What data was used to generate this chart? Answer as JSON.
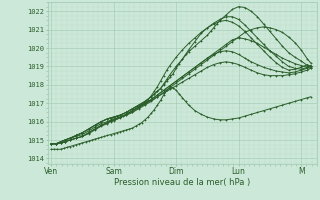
{
  "bg_color": "#cce8d8",
  "grid_major_color": "#a0c8b0",
  "grid_minor_color": "#b8d8c4",
  "line_color": "#2a5e2a",
  "ylabel_values": [
    1014,
    1015,
    1016,
    1017,
    1018,
    1019,
    1020,
    1021,
    1022
  ],
  "ylim": [
    1013.7,
    1022.5
  ],
  "xlim": [
    -0.05,
    4.25
  ],
  "xtick_labels": [
    "Ven",
    "Sam",
    "Dim",
    "Lun",
    "M"
  ],
  "xtick_positions": [
    0,
    1,
    2,
    3,
    4
  ],
  "xlabel": "Pression niveau de la mer( hPa )",
  "lines": [
    {
      "x": [
        0.0,
        0.08,
        0.15,
        0.22,
        0.3,
        0.4,
        0.5,
        0.6,
        0.7,
        0.8,
        0.9,
        0.95,
        1.0,
        1.05,
        1.1,
        1.15,
        1.2,
        1.3,
        1.4,
        1.5,
        1.6,
        1.7,
        1.8,
        1.9,
        2.0,
        2.1,
        2.2,
        2.3,
        2.4,
        2.5,
        2.6,
        2.7,
        2.8,
        2.9,
        3.0,
        3.1,
        3.2,
        3.3,
        3.4,
        3.5,
        3.6,
        3.7,
        3.8,
        3.9,
        4.0,
        4.1,
        4.15
      ],
      "y": [
        1014.8,
        1014.8,
        1014.9,
        1015.0,
        1015.1,
        1015.2,
        1015.3,
        1015.5,
        1015.7,
        1015.9,
        1016.0,
        1016.1,
        1016.15,
        1016.2,
        1016.25,
        1016.3,
        1016.35,
        1016.5,
        1016.7,
        1016.9,
        1017.1,
        1017.35,
        1017.6,
        1017.85,
        1018.1,
        1018.35,
        1018.6,
        1018.85,
        1019.1,
        1019.35,
        1019.6,
        1019.85,
        1020.1,
        1020.35,
        1020.6,
        1020.85,
        1021.0,
        1021.1,
        1021.15,
        1021.1,
        1021.0,
        1020.85,
        1020.6,
        1020.3,
        1019.9,
        1019.4,
        1019.2
      ]
    },
    {
      "x": [
        0.0,
        0.08,
        0.15,
        0.22,
        0.3,
        0.4,
        0.5,
        0.6,
        0.7,
        0.8,
        0.9,
        0.95,
        1.0,
        1.05,
        1.1,
        1.2,
        1.3,
        1.4,
        1.5,
        1.6,
        1.65,
        1.7,
        1.75,
        1.8,
        1.85,
        1.9,
        1.95,
        2.0,
        2.05,
        2.1,
        2.15,
        2.2,
        2.3,
        2.4,
        2.5,
        2.6,
        2.7,
        2.8,
        2.9,
        3.0,
        3.1,
        3.2,
        3.3,
        3.4,
        3.5,
        3.6,
        3.7,
        3.8,
        3.9,
        4.0,
        4.1,
        4.15
      ],
      "y": [
        1014.8,
        1014.8,
        1014.9,
        1015.0,
        1015.1,
        1015.25,
        1015.4,
        1015.6,
        1015.8,
        1016.0,
        1016.15,
        1016.2,
        1016.25,
        1016.3,
        1016.35,
        1016.5,
        1016.7,
        1016.9,
        1017.1,
        1017.35,
        1017.5,
        1017.65,
        1017.8,
        1018.0,
        1018.2,
        1018.4,
        1018.6,
        1018.9,
        1019.15,
        1019.4,
        1019.65,
        1019.9,
        1020.35,
        1020.8,
        1021.1,
        1021.3,
        1021.45,
        1021.5,
        1021.4,
        1021.2,
        1020.9,
        1020.55,
        1020.2,
        1019.85,
        1019.5,
        1019.2,
        1018.95,
        1018.8,
        1018.85,
        1018.95,
        1019.1,
        1019.0
      ]
    },
    {
      "x": [
        0.0,
        0.08,
        0.15,
        0.22,
        0.3,
        0.4,
        0.5,
        0.6,
        0.7,
        0.8,
        0.9,
        0.95,
        1.0,
        1.05,
        1.1,
        1.2,
        1.3,
        1.4,
        1.5,
        1.6,
        1.65,
        1.7,
        1.75,
        1.8,
        1.85,
        1.9,
        2.0,
        2.1,
        2.2,
        2.3,
        2.4,
        2.5,
        2.55,
        2.6,
        2.65,
        2.7,
        2.8,
        2.9,
        3.0,
        3.1,
        3.2,
        3.3,
        3.4,
        3.5,
        3.6,
        3.7,
        3.8,
        3.9,
        4.0,
        4.1,
        4.15
      ],
      "y": [
        1014.8,
        1014.8,
        1014.9,
        1015.0,
        1015.1,
        1015.25,
        1015.4,
        1015.6,
        1015.8,
        1016.0,
        1016.15,
        1016.2,
        1016.25,
        1016.3,
        1016.35,
        1016.5,
        1016.7,
        1016.9,
        1017.1,
        1017.35,
        1017.5,
        1017.65,
        1017.8,
        1018.05,
        1018.3,
        1018.55,
        1019.0,
        1019.4,
        1019.8,
        1020.1,
        1020.4,
        1020.7,
        1020.9,
        1021.1,
        1021.3,
        1021.5,
        1021.8,
        1022.1,
        1022.25,
        1022.2,
        1022.0,
        1021.7,
        1021.3,
        1020.9,
        1020.5,
        1020.1,
        1019.75,
        1019.5,
        1019.3,
        1019.05,
        1018.95
      ]
    },
    {
      "x": [
        0.0,
        0.08,
        0.15,
        0.22,
        0.3,
        0.4,
        0.5,
        0.6,
        0.7,
        0.8,
        0.9,
        0.95,
        1.0,
        1.05,
        1.1,
        1.2,
        1.3,
        1.4,
        1.45,
        1.5,
        1.55,
        1.6,
        1.65,
        1.7,
        1.75,
        1.8,
        1.85,
        1.9,
        2.0,
        2.1,
        2.2,
        2.3,
        2.4,
        2.5,
        2.6,
        2.7,
        2.8,
        2.9,
        3.0,
        3.1,
        3.2,
        3.3,
        3.4,
        3.5,
        3.6,
        3.7,
        3.8,
        3.9,
        4.0,
        4.1,
        4.15
      ],
      "y": [
        1014.8,
        1014.8,
        1014.9,
        1015.0,
        1015.1,
        1015.25,
        1015.4,
        1015.6,
        1015.8,
        1016.0,
        1016.15,
        1016.2,
        1016.25,
        1016.3,
        1016.35,
        1016.5,
        1016.7,
        1016.85,
        1016.95,
        1017.05,
        1017.2,
        1017.4,
        1017.65,
        1017.9,
        1018.2,
        1018.5,
        1018.8,
        1019.05,
        1019.5,
        1019.9,
        1020.25,
        1020.55,
        1020.85,
        1021.1,
        1021.35,
        1021.55,
        1021.7,
        1021.7,
        1021.55,
        1021.25,
        1020.9,
        1020.55,
        1020.2,
        1019.85,
        1019.55,
        1019.25,
        1019.0,
        1018.9,
        1018.85,
        1018.95,
        1019.05
      ]
    },
    {
      "x": [
        0.0,
        0.08,
        0.15,
        0.22,
        0.3,
        0.4,
        0.5,
        0.6,
        0.7,
        0.8,
        0.9,
        0.95,
        1.0,
        1.1,
        1.2,
        1.3,
        1.4,
        1.5,
        1.6,
        1.7,
        1.8,
        1.9,
        2.0,
        2.1,
        2.2,
        2.3,
        2.4,
        2.5,
        2.6,
        2.7,
        2.8,
        2.9,
        3.0,
        3.1,
        3.2,
        3.3,
        3.4,
        3.5,
        3.6,
        3.7,
        3.8,
        3.9,
        4.0,
        4.1,
        4.15
      ],
      "y": [
        1014.8,
        1014.8,
        1014.85,
        1014.9,
        1015.0,
        1015.1,
        1015.2,
        1015.4,
        1015.6,
        1015.8,
        1015.95,
        1016.05,
        1016.1,
        1016.25,
        1016.4,
        1016.6,
        1016.8,
        1017.0,
        1017.2,
        1017.45,
        1017.7,
        1017.95,
        1018.2,
        1018.45,
        1018.7,
        1018.95,
        1019.2,
        1019.45,
        1019.7,
        1019.95,
        1020.2,
        1020.45,
        1020.55,
        1020.5,
        1020.4,
        1020.25,
        1020.05,
        1019.85,
        1019.65,
        1019.45,
        1019.3,
        1019.15,
        1019.05,
        1018.95,
        1018.9
      ]
    },
    {
      "x": [
        0.0,
        0.08,
        0.15,
        0.22,
        0.3,
        0.4,
        0.5,
        0.6,
        0.7,
        0.8,
        0.9,
        0.95,
        1.0,
        1.1,
        1.2,
        1.3,
        1.4,
        1.5,
        1.6,
        1.7,
        1.8,
        1.9,
        2.0,
        2.1,
        2.2,
        2.3,
        2.4,
        2.5,
        2.6,
        2.7,
        2.8,
        2.9,
        3.0,
        3.1,
        3.15,
        3.2,
        3.3,
        3.4,
        3.5,
        3.6,
        3.7,
        3.8,
        3.9,
        4.0,
        4.1,
        4.15
      ],
      "y": [
        1014.8,
        1014.8,
        1014.85,
        1014.9,
        1015.0,
        1015.1,
        1015.2,
        1015.4,
        1015.6,
        1015.8,
        1015.95,
        1016.05,
        1016.1,
        1016.25,
        1016.4,
        1016.6,
        1016.8,
        1017.0,
        1017.2,
        1017.45,
        1017.7,
        1017.95,
        1018.2,
        1018.45,
        1018.7,
        1018.95,
        1019.2,
        1019.45,
        1019.65,
        1019.8,
        1019.85,
        1019.8,
        1019.65,
        1019.45,
        1019.35,
        1019.25,
        1019.1,
        1018.95,
        1018.85,
        1018.75,
        1018.7,
        1018.65,
        1018.7,
        1018.8,
        1018.9,
        1019.05
      ]
    },
    {
      "x": [
        0.0,
        0.08,
        0.15,
        0.22,
        0.3,
        0.4,
        0.5,
        0.6,
        0.7,
        0.8,
        0.9,
        0.95,
        1.0,
        1.1,
        1.2,
        1.3,
        1.4,
        1.5,
        1.6,
        1.7,
        1.8,
        1.9,
        2.0,
        2.1,
        2.2,
        2.3,
        2.4,
        2.5,
        2.6,
        2.7,
        2.8,
        2.9,
        3.0,
        3.1,
        3.2,
        3.3,
        3.4,
        3.5,
        3.6,
        3.7,
        3.8,
        3.9,
        4.0,
        4.1,
        4.15
      ],
      "y": [
        1014.8,
        1014.8,
        1014.85,
        1014.9,
        1015.0,
        1015.1,
        1015.2,
        1015.35,
        1015.55,
        1015.75,
        1015.9,
        1016.0,
        1016.05,
        1016.2,
        1016.35,
        1016.55,
        1016.75,
        1016.95,
        1017.15,
        1017.35,
        1017.55,
        1017.75,
        1017.95,
        1018.15,
        1018.35,
        1018.55,
        1018.75,
        1018.95,
        1019.1,
        1019.2,
        1019.25,
        1019.2,
        1019.1,
        1018.95,
        1018.8,
        1018.65,
        1018.55,
        1018.5,
        1018.5,
        1018.5,
        1018.55,
        1018.6,
        1018.7,
        1018.8,
        1018.9
      ]
    },
    {
      "x": [
        0.0,
        0.05,
        0.1,
        0.15,
        0.2,
        0.25,
        0.3,
        0.35,
        0.4,
        0.45,
        0.5,
        0.55,
        0.6,
        0.65,
        0.7,
        0.75,
        0.8,
        0.85,
        0.9,
        0.95,
        1.0,
        1.05,
        1.1,
        1.15,
        1.2,
        1.25,
        1.3,
        1.35,
        1.4,
        1.45,
        1.5,
        1.55,
        1.6,
        1.65,
        1.7,
        1.75,
        1.8,
        1.85,
        1.9,
        1.95,
        2.0,
        2.05,
        2.1,
        2.15,
        2.2,
        2.3,
        2.4,
        2.5,
        2.6,
        2.7,
        2.8,
        2.9,
        3.0,
        3.1,
        3.2,
        3.3,
        3.4,
        3.5,
        3.6,
        3.7,
        3.8,
        3.9,
        4.0,
        4.1,
        4.15
      ],
      "y": [
        1014.5,
        1014.5,
        1014.5,
        1014.5,
        1014.55,
        1014.6,
        1014.65,
        1014.7,
        1014.75,
        1014.8,
        1014.85,
        1014.9,
        1014.95,
        1015.0,
        1015.05,
        1015.1,
        1015.15,
        1015.2,
        1015.25,
        1015.3,
        1015.35,
        1015.4,
        1015.45,
        1015.5,
        1015.55,
        1015.6,
        1015.65,
        1015.75,
        1015.85,
        1015.95,
        1016.1,
        1016.25,
        1016.45,
        1016.65,
        1016.9,
        1017.15,
        1017.45,
        1017.7,
        1017.85,
        1017.85,
        1017.7,
        1017.5,
        1017.3,
        1017.1,
        1016.9,
        1016.6,
        1016.4,
        1016.25,
        1016.15,
        1016.1,
        1016.1,
        1016.15,
        1016.2,
        1016.3,
        1016.4,
        1016.5,
        1016.6,
        1016.7,
        1016.8,
        1016.9,
        1017.0,
        1017.1,
        1017.2,
        1017.3,
        1017.35
      ]
    }
  ]
}
